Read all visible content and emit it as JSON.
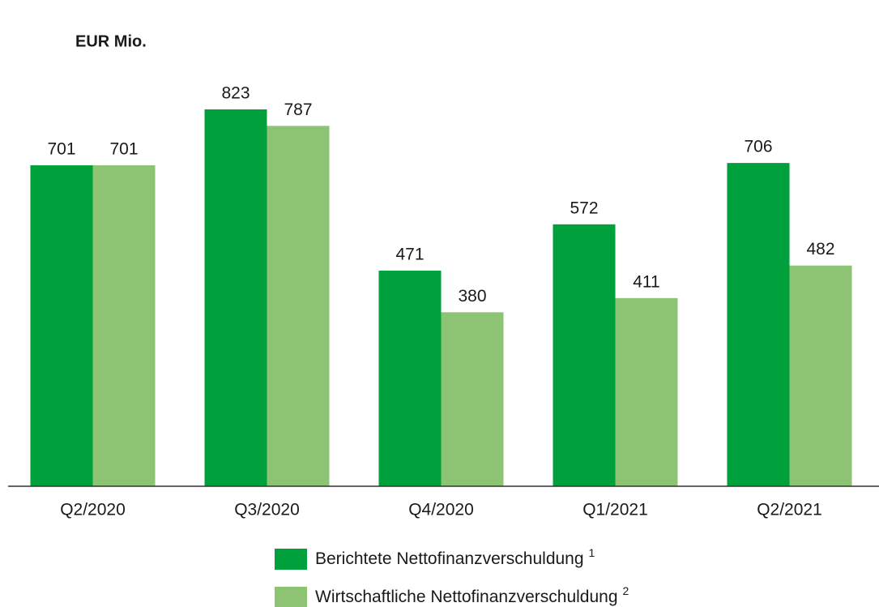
{
  "chart_data": {
    "type": "bar",
    "title": "EUR Mio.",
    "categories": [
      "Q2/2020",
      "Q3/2020",
      "Q4/2020",
      "Q1/2021",
      "Q2/2021"
    ],
    "series": [
      {
        "name": "Berichtete Nettofinanzverschuldung",
        "note": "1",
        "color": "#00a03c",
        "values": [
          701,
          823,
          471,
          572,
          706
        ]
      },
      {
        "name": "Wirtschaftliche Nettofinanzverschuldung",
        "note": "2",
        "color": "#8cc474",
        "values": [
          701,
          787,
          380,
          411,
          482
        ]
      }
    ],
    "ylim": [
      0,
      1000
    ]
  }
}
